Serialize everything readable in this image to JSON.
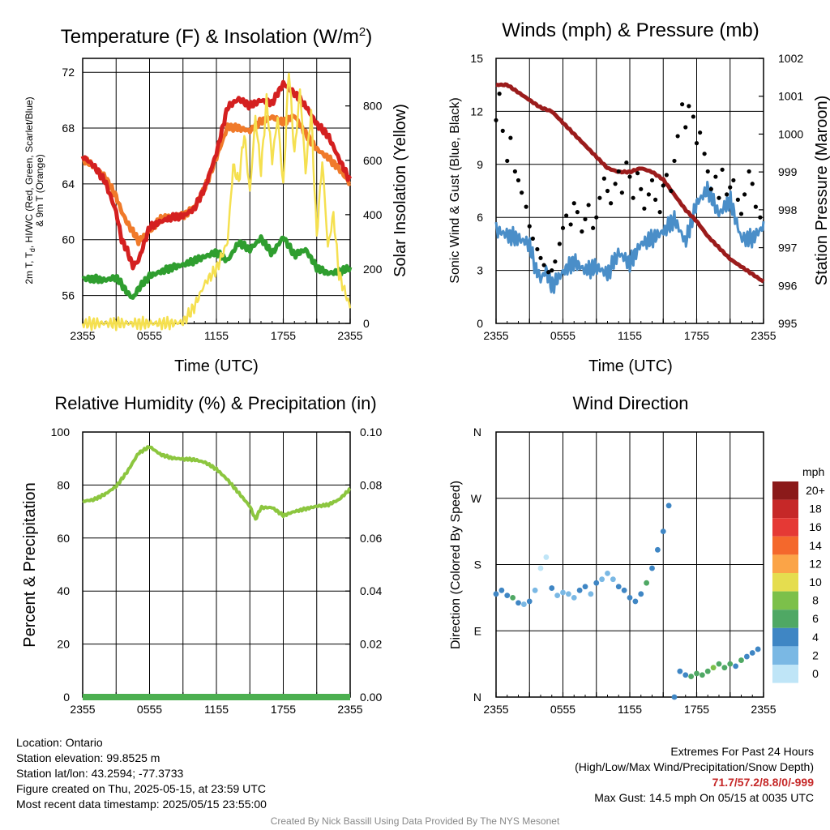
{
  "chart_data": [
    {
      "id": "temperature",
      "type": "line",
      "title": "Temperature (F) & Insolation (W/m",
      "title_sup": "2",
      "title_suffix": ")",
      "xlabel": "Time (UTC)",
      "ylabel": "2m T, Td, HI/WC (Red, Green, Scarlet/Blue) & 9m T (Orange)",
      "ylabel_line1": "2m T, T",
      "ylabel_sub": "d",
      "ylabel_line1_rest": ", HI/WC (Red, Green, Scarlet/Blue)",
      "ylabel_line2": "& 9m T (Orange)",
      "y2label": "Solar Insolation (Yellow)",
      "x_ticks": [
        "2355",
        "0555",
        "1155",
        "1755",
        "2355"
      ],
      "ylim": [
        54,
        73
      ],
      "y_ticks": [
        56,
        60,
        64,
        68,
        72
      ],
      "y2lim": [
        0,
        975
      ],
      "y2_ticks": [
        0,
        200,
        400,
        600,
        800
      ],
      "x_hours": [
        0,
        24
      ],
      "grid": true,
      "series": [
        {
          "color": "#2f9e2f",
          "axis": "left",
          "x": [
            0,
            1,
            2,
            3,
            3.5,
            4,
            4.5,
            5,
            6,
            7,
            8,
            9,
            10,
            11,
            12,
            13,
            14,
            15,
            16,
            17,
            18,
            19,
            20,
            21,
            22,
            23,
            24
          ],
          "values": [
            57.2,
            57.2,
            57.1,
            57.3,
            56.8,
            56.2,
            55.8,
            56.5,
            57.4,
            57.7,
            58.0,
            58.2,
            58.5,
            58.8,
            59.1,
            58.5,
            59.8,
            59.3,
            60.1,
            59.0,
            60.2,
            58.9,
            59.3,
            58.0,
            57.6,
            57.7,
            58.0
          ]
        },
        {
          "color": "#f07a2a",
          "axis": "left",
          "x": [
            0,
            1,
            2,
            3,
            3.5,
            4,
            4.5,
            5,
            6,
            7,
            8,
            9,
            10,
            11,
            12,
            13,
            14,
            15,
            16,
            17,
            18,
            19,
            20,
            21,
            22,
            23,
            24
          ],
          "values": [
            65.8,
            65.3,
            64.5,
            63.1,
            62.0,
            61.2,
            60.6,
            59.9,
            60.6,
            61.5,
            61.7,
            61.7,
            62.3,
            63.8,
            65.9,
            68.1,
            68.0,
            67.8,
            68.5,
            68.8,
            68.4,
            68.9,
            67.6,
            66.5,
            65.9,
            65.1,
            64.0
          ]
        },
        {
          "color": "#d42020",
          "axis": "left",
          "x": [
            0,
            1,
            2,
            3,
            3.5,
            4,
            4.5,
            5,
            6,
            7,
            8,
            9,
            10,
            11,
            12,
            13,
            14,
            15,
            16,
            17,
            18,
            19,
            20,
            21,
            22,
            23,
            24
          ],
          "values": [
            66.0,
            65.3,
            64.2,
            62.0,
            60.0,
            59.2,
            58.1,
            58.5,
            60.9,
            61.3,
            61.6,
            61.7,
            62.2,
            63.8,
            66.2,
            69.5,
            70.1,
            69.6,
            70.0,
            69.8,
            71.2,
            70.5,
            69.6,
            68.3,
            67.5,
            65.8,
            64.2
          ]
        },
        {
          "color": "#f5e050",
          "axis": "right",
          "x": [
            0,
            1,
            2,
            3,
            4,
            5,
            6,
            7,
            8,
            9,
            10,
            11,
            12,
            13,
            13.5,
            14,
            14.5,
            15,
            15.5,
            16,
            16.5,
            17,
            17.5,
            18,
            18.5,
            19,
            19.5,
            20,
            20.5,
            21,
            21.5,
            22,
            22.5,
            23,
            24
          ],
          "values": [
            0,
            0,
            0,
            0,
            0,
            0,
            0,
            0,
            0,
            5,
            60,
            150,
            200,
            300,
            580,
            520,
            700,
            480,
            760,
            560,
            820,
            600,
            760,
            500,
            940,
            620,
            860,
            560,
            780,
            320,
            600,
            280,
            400,
            180,
            60
          ]
        }
      ]
    },
    {
      "id": "winds",
      "type": "scatter",
      "title": "Winds (mph) & Pressure (mb)",
      "xlabel": "Time (UTC)",
      "ylabel": "Sonic Wind & Gust (Blue, Black)",
      "y2label": "Station Pressure (Maroon)",
      "x_ticks": [
        "2355",
        "0555",
        "1155",
        "1755",
        "2355"
      ],
      "ylim": [
        0,
        15
      ],
      "y_ticks": [
        0,
        3,
        6,
        9,
        12,
        15
      ],
      "y2lim": [
        995,
        1002
      ],
      "y2_ticks": [
        995,
        996,
        997,
        998,
        999,
        1000,
        1001,
        1002
      ],
      "x_hours": [
        0,
        24
      ],
      "grid": true,
      "wind": {
        "color": "#4a8ec8",
        "x": [
          0,
          1,
          2,
          3,
          3.5,
          4,
          4.5,
          5,
          6,
          7,
          8,
          9,
          10,
          11,
          12,
          13,
          14,
          15,
          16,
          17,
          18,
          19,
          20,
          21,
          22,
          23,
          24
        ],
        "values": [
          5.3,
          5.0,
          4.8,
          4.5,
          3.2,
          2.5,
          3.0,
          2.1,
          2.9,
          3.5,
          3.0,
          3.2,
          2.8,
          4.0,
          3.4,
          4.5,
          4.8,
          5.2,
          5.9,
          4.6,
          6.8,
          7.6,
          6.2,
          7.0,
          4.8,
          4.8,
          5.5
        ]
      },
      "gust": {
        "color": "#000000",
        "x": [
          0,
          0.3,
          0.6,
          1,
          1.3,
          1.7,
          2,
          2.3,
          2.7,
          3,
          3.3,
          3.7,
          4,
          4.3,
          4.7,
          5,
          5.3,
          5.7,
          6,
          6.3,
          6.7,
          7,
          7.3,
          7.7,
          8,
          8.3,
          8.7,
          9,
          9.3,
          9.7,
          10,
          10.3,
          10.7,
          11,
          11.3,
          11.7,
          12,
          12.3,
          12.7,
          13,
          13.3,
          13.7,
          14,
          14.3,
          14.7,
          15,
          15.3,
          15.7,
          16,
          16.3,
          16.7,
          17,
          17.3,
          17.7,
          18,
          18.3,
          18.7,
          19,
          19.3,
          19.7,
          20,
          20.3,
          20.7,
          21,
          21.3,
          21.7,
          22,
          22.3,
          22.7,
          23,
          23.3,
          23.7
        ],
        "values": [
          11.5,
          13.0,
          10.9,
          9.2,
          10.5,
          8.6,
          8.1,
          7.4,
          6.6,
          5.5,
          4.8,
          4.2,
          3.7,
          3.3,
          2.9,
          3.0,
          3.5,
          4.5,
          5.4,
          6.1,
          5.6,
          6.8,
          6.3,
          5.2,
          5.9,
          6.7,
          5.4,
          6.0,
          7.1,
          8.2,
          7.5,
          6.8,
          7.9,
          8.6,
          7.4,
          9.1,
          8.3,
          7.1,
          8.5,
          7.6,
          6.5,
          7.3,
          8.1,
          7.0,
          6.3,
          7.8,
          8.4,
          7.5,
          9.2,
          10.6,
          12.4,
          11.1,
          12.3,
          11.7,
          10.2,
          10.8,
          9.6,
          8.6,
          7.6,
          8.3,
          7.1,
          8.7,
          7.3,
          7.7,
          8.1,
          7.0,
          6.2,
          7.3,
          8.6,
          7.9,
          6.6,
          6.0
        ]
      },
      "pressure": {
        "color": "#9b1c1c",
        "axis": "right",
        "x": [
          0,
          1,
          2,
          3,
          4,
          5,
          6,
          7,
          8,
          9,
          10,
          11,
          12,
          13,
          14,
          15,
          16,
          17,
          18,
          19,
          20,
          21,
          22,
          23,
          24
        ],
        "values": [
          1001.3,
          1001.3,
          1001.1,
          1000.9,
          1000.7,
          1000.6,
          1000.3,
          1000.0,
          999.7,
          999.4,
          999.1,
          999.0,
          999.0,
          999.1,
          999.0,
          998.8,
          998.4,
          998.0,
          997.7,
          997.3,
          997.0,
          996.7,
          996.5,
          996.3,
          996.1
        ]
      }
    },
    {
      "id": "humidity",
      "type": "line",
      "title": "Relative Humidity (%) & Precipitation (in)",
      "ylabel": "Percent & Precipitation",
      "x_ticks": [
        "2355",
        "0555",
        "1155",
        "1755",
        "2355"
      ],
      "ylim": [
        0,
        100
      ],
      "y_ticks": [
        0,
        20,
        40,
        60,
        80,
        100
      ],
      "y2lim": [
        0,
        0.1
      ],
      "y2_ticks": [
        "0.00",
        "0.02",
        "0.04",
        "0.06",
        "0.08",
        "0.10"
      ],
      "x_hours": [
        0,
        24
      ],
      "grid": true,
      "series": [
        {
          "color": "#8cc63f",
          "axis": "left",
          "x": [
            0,
            1,
            2,
            3,
            4,
            5,
            6,
            7,
            8,
            9,
            10,
            11,
            12,
            13,
            14,
            15,
            15.5,
            16,
            17,
            18,
            19,
            20,
            21,
            22,
            23,
            24
          ],
          "values": [
            73.8,
            74.5,
            76.5,
            79.5,
            85,
            92,
            94.5,
            91.5,
            90.2,
            89.8,
            89.6,
            88.5,
            86,
            82,
            77,
            72,
            67,
            71.5,
            71.5,
            68.5,
            70,
            71,
            72,
            72.5,
            74.5,
            78.5
          ]
        },
        {
          "color": "#4caf50",
          "axis": "right",
          "x": [
            0,
            24
          ],
          "values": [
            0,
            0
          ]
        }
      ]
    },
    {
      "id": "wind_direction",
      "type": "scatter",
      "title": "Wind Direction",
      "ylabel": "Direction (Colored By Speed)",
      "x_ticks": [
        "2355",
        "0555",
        "1155",
        "1755",
        "2355"
      ],
      "y_tick_labels": [
        "N",
        "E",
        "S",
        "W",
        "N"
      ],
      "ylim": [
        0,
        360
      ],
      "y_ticks": [
        0,
        90,
        180,
        270,
        360
      ],
      "x_hours": [
        0,
        24
      ],
      "grid": true,
      "legend": {
        "position": "right",
        "title": "mph",
        "labels": [
          "20+",
          "18",
          "16",
          "14",
          "12",
          "10",
          "8",
          "6",
          "4",
          "2",
          "0"
        ],
        "colors": [
          "#8b1a1a",
          "#c62828",
          "#e53935",
          "#f4682c",
          "#fba447",
          "#e5dd4f",
          "#7cc04a",
          "#4fa864",
          "#3f86c4",
          "#7ab8e4",
          "#bfe5f7"
        ]
      },
      "points_x": [
        0,
        0.5,
        1,
        1.5,
        2,
        2.5,
        3,
        3.5,
        4,
        4.5,
        5,
        5.5,
        6,
        6.5,
        7,
        7.5,
        8,
        8.5,
        9,
        9.5,
        10,
        10.5,
        11,
        11.5,
        12,
        12.5,
        13,
        13.5,
        14,
        14.5,
        15,
        15.5,
        16,
        16.5,
        17,
        17.5,
        18,
        18.5,
        19,
        19.5,
        20,
        20.5,
        21,
        21.5,
        22,
        22.5,
        23,
        23.5
      ],
      "points_y": [
        140,
        145,
        138,
        135,
        128,
        126,
        130,
        145,
        175,
        190,
        148,
        138,
        142,
        140,
        135,
        145,
        150,
        140,
        155,
        160,
        168,
        160,
        150,
        145,
        135,
        130,
        140,
        155,
        175,
        200,
        225,
        260,
        0,
        35,
        30,
        28,
        32,
        30,
        35,
        40,
        45,
        40,
        45,
        42,
        50,
        55,
        60,
        65
      ],
      "points_v": [
        4,
        5,
        4,
        6,
        4,
        3,
        4,
        3,
        1,
        1,
        4,
        2,
        3,
        2,
        3,
        4,
        4,
        3,
        4,
        2,
        3,
        3,
        4,
        4,
        5,
        4,
        5,
        6,
        4,
        4,
        5,
        4,
        4,
        4,
        5,
        6,
        6,
        7,
        6,
        8,
        6,
        6,
        7,
        5,
        6,
        5,
        4,
        5
      ]
    }
  ],
  "info": {
    "location": "Location: Ontario",
    "elevation": "Station elevation: 99.8525 m",
    "latlon": "Station lat/lon: 43.2594; -77.3733",
    "created": "Figure created on Thu, 2025-05-15, at 23:59 UTC",
    "recent": "Most recent data timestamp: 2025/05/15 23:55:00"
  },
  "extremes": {
    "title": "Extremes For Past 24 Hours",
    "subtitle": "(High/Low/Max Wind/Precipitation/Snow Depth)",
    "values": "71.7/57.2/8.8/0/-999",
    "gust": "Max Gust: 14.5 mph On 05/15 at 0035 UTC"
  },
  "credit": "Created By Nick Bassill Using Data Provided By The NYS Mesonet"
}
